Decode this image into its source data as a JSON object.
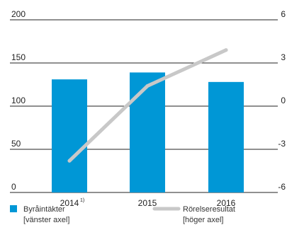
{
  "chart_data": {
    "type": "bar",
    "categories": [
      "2014",
      "2015",
      "2016"
    ],
    "category_footnotes": [
      "1)",
      "",
      ""
    ],
    "series": [
      {
        "name": "Byråintäkter",
        "name_line2": "[vänster axel]",
        "type": "bar",
        "axis": "left",
        "color": "#0097d6",
        "values": [
          131,
          139,
          128
        ]
      },
      {
        "name": "Rörelseresultat",
        "name_line2": "[höger axel]",
        "type": "line",
        "axis": "right",
        "color": "#c8c8c8",
        "values": [
          -3.8,
          1.4,
          3.9
        ]
      }
    ],
    "left_axis": {
      "ylim": [
        0,
        200
      ],
      "ticks": [
        "0",
        "50",
        "100",
        "150",
        "200"
      ]
    },
    "right_axis": {
      "ylim": [
        -6,
        6
      ],
      "ticks": [
        "-6",
        "-3",
        "0",
        "3",
        "6"
      ]
    },
    "grid": true,
    "legend_position": "bottom"
  }
}
